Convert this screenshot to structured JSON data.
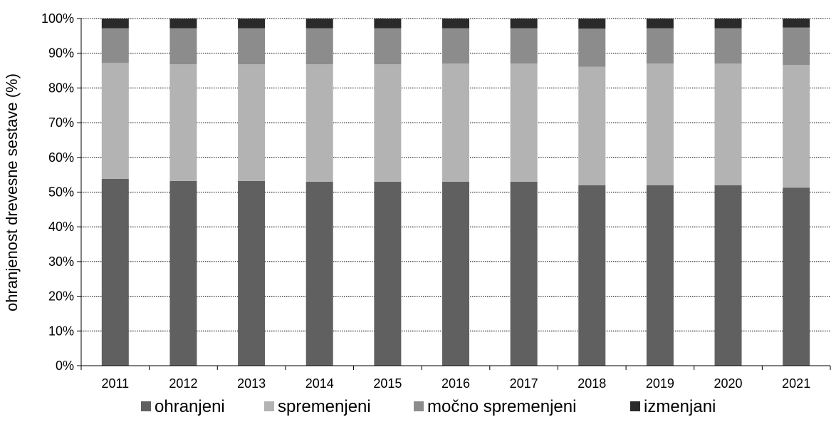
{
  "chart_data": {
    "type": "bar",
    "stacked": true,
    "title": "",
    "xlabel": "",
    "ylabel": "ohranjenost drevesne sestave (%)",
    "ylim": [
      0,
      100
    ],
    "yticks": [
      "0%",
      "10%",
      "20%",
      "30%",
      "40%",
      "50%",
      "60%",
      "70%",
      "80%",
      "90%",
      "100%"
    ],
    "grid": "horizontal-dotted",
    "legend_position": "bottom",
    "categories": [
      "2011",
      "2012",
      "2013",
      "2014",
      "2015",
      "2016",
      "2017",
      "2018",
      "2019",
      "2020",
      "2021"
    ],
    "series": [
      {
        "name": "ohranjeni",
        "color": "#606060",
        "values": [
          53.8,
          53.2,
          53.2,
          53.0,
          53.0,
          53.0,
          53.0,
          52.0,
          52.0,
          52.0,
          51.3
        ]
      },
      {
        "name": "spremenjeni",
        "color": "#b3b3b3",
        "values": [
          33.4,
          33.6,
          33.6,
          33.8,
          33.8,
          34.0,
          34.0,
          34.1,
          35.0,
          35.0,
          35.3
        ]
      },
      {
        "name": "močno spremenjeni",
        "color": "#8c8c8c",
        "values": [
          10.0,
          10.4,
          10.4,
          10.4,
          10.4,
          10.2,
          10.2,
          11.0,
          10.2,
          10.2,
          10.8
        ]
      },
      {
        "name": "izmenjani",
        "color": "#2a2a2a",
        "values": [
          2.8,
          2.8,
          2.8,
          2.8,
          2.8,
          2.8,
          2.8,
          2.9,
          2.8,
          2.8,
          2.6
        ]
      }
    ]
  }
}
